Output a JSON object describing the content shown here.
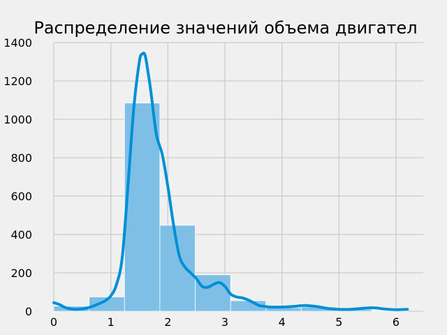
{
  "chart_data": {
    "type": "bar",
    "title": "Распределение значений объема двигател",
    "xlabel": "",
    "ylabel": "",
    "xlim": [
      -0.08,
      6.5
    ],
    "ylim": [
      0,
      1400
    ],
    "xticks": [
      0,
      1,
      2,
      3,
      4,
      5,
      6
    ],
    "yticks": [
      0,
      200,
      400,
      600,
      800,
      1000,
      1200,
      1400
    ],
    "grid": true,
    "colors": {
      "bar": "#7fbfe6",
      "kde": "#008fd5",
      "grid": "#cbcbcb",
      "background": "#f0f0f0"
    },
    "histogram": {
      "bin_edges": [
        0.0,
        0.62,
        1.24,
        1.86,
        2.48,
        3.1,
        3.72,
        4.34,
        4.96,
        5.58,
        6.2
      ],
      "counts": [
        27,
        75,
        1085,
        448,
        190,
        55,
        18,
        22,
        10,
        3
      ]
    },
    "kde": {
      "x": [
        0.0,
        0.1,
        0.2,
        0.3,
        0.4,
        0.5,
        0.6,
        0.7,
        0.8,
        0.9,
        1.0,
        1.1,
        1.2,
        1.3,
        1.4,
        1.5,
        1.55,
        1.6,
        1.65,
        1.7,
        1.8,
        1.9,
        2.0,
        2.1,
        2.2,
        2.3,
        2.4,
        2.5,
        2.6,
        2.7,
        2.8,
        2.9,
        3.0,
        3.1,
        3.2,
        3.3,
        3.4,
        3.5,
        3.6,
        3.7,
        3.8,
        3.9,
        4.0,
        4.2,
        4.4,
        4.6,
        4.8,
        5.0,
        5.2,
        5.4,
        5.6,
        5.8,
        6.0,
        6.2
      ],
      "y": [
        45,
        35,
        20,
        12,
        10,
        12,
        18,
        28,
        40,
        55,
        80,
        140,
        280,
        650,
        1050,
        1300,
        1340,
        1335,
        1250,
        1150,
        920,
        820,
        650,
        450,
        290,
        230,
        200,
        170,
        130,
        125,
        140,
        150,
        130,
        90,
        75,
        70,
        60,
        45,
        30,
        25,
        22,
        22,
        22,
        25,
        30,
        25,
        15,
        10,
        10,
        15,
        18,
        12,
        8,
        10
      ]
    }
  }
}
